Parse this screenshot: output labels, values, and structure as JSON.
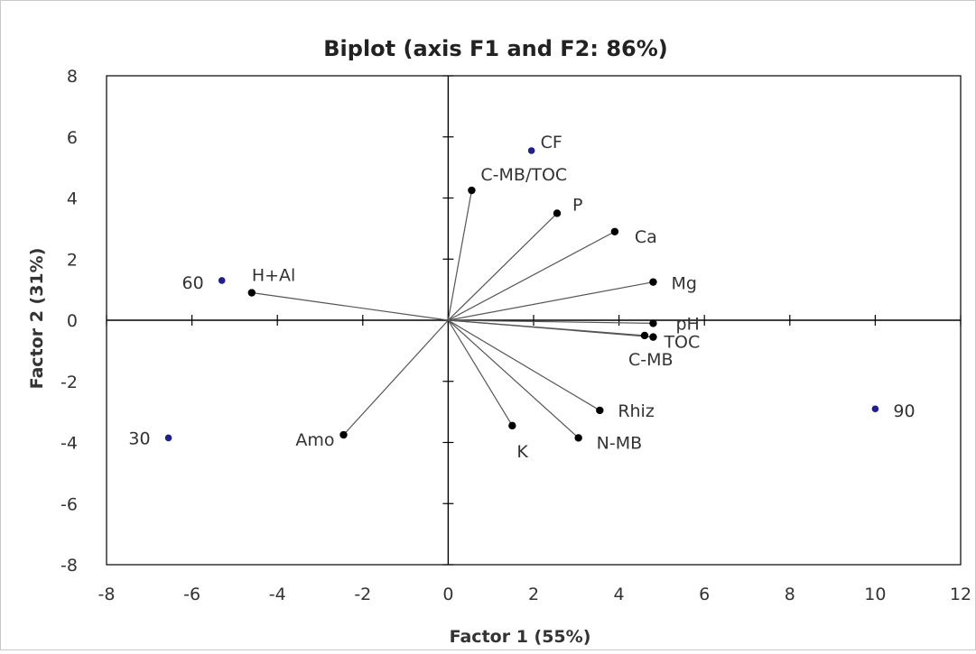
{
  "chart_data": {
    "type": "scatter",
    "title": "Biplot (axis F1 and F2: 86%)",
    "xlabel": "Factor 1 (55%)",
    "ylabel": "Factor 2 (31%)",
    "xlim": [
      -8,
      12
    ],
    "ylim": [
      -8,
      8
    ],
    "x_ticks": [
      "-8",
      "-6",
      "-4",
      "-2",
      "0",
      "2",
      "4",
      "6",
      "8",
      "10",
      "12"
    ],
    "y_ticks": [
      "8",
      "6",
      "4",
      "2",
      "0",
      "-2",
      "-4",
      "-6",
      "-8"
    ],
    "grid": false,
    "legend": "none",
    "colors": {
      "variables": "#000000",
      "observations": "#1f1f8f"
    },
    "series": [
      {
        "points": [
          {
            "label": "C-MB/TOC",
            "x": 0.55,
            "y": 4.25
          },
          {
            "label": "P",
            "x": 2.55,
            "y": 3.5
          },
          {
            "label": "Ca",
            "x": 3.9,
            "y": 2.9
          },
          {
            "label": "Mg",
            "x": 4.8,
            "y": 1.25
          },
          {
            "label": "pH",
            "x": 4.8,
            "y": -0.1
          },
          {
            "label": "TOC",
            "x": 4.8,
            "y": -0.55
          },
          {
            "label": "C-MB",
            "x": 4.6,
            "y": -0.5
          },
          {
            "label": "Rhiz",
            "x": 3.55,
            "y": -2.95
          },
          {
            "label": "N-MB",
            "x": 3.05,
            "y": -3.85
          },
          {
            "label": "K",
            "x": 1.5,
            "y": -3.45
          },
          {
            "label": "Amo",
            "x": -2.45,
            "y": -3.75
          },
          {
            "label": "H+Al",
            "x": -4.6,
            "y": 0.9
          }
        ]
      },
      {
        "points": [
          {
            "label": "CF",
            "x": 1.95,
            "y": 5.55
          },
          {
            "label": "60",
            "x": -5.3,
            "y": 1.3
          },
          {
            "label": "30",
            "x": -6.55,
            "y": -3.85
          },
          {
            "label": "90",
            "x": 10.0,
            "y": -2.9
          }
        ]
      }
    ]
  }
}
